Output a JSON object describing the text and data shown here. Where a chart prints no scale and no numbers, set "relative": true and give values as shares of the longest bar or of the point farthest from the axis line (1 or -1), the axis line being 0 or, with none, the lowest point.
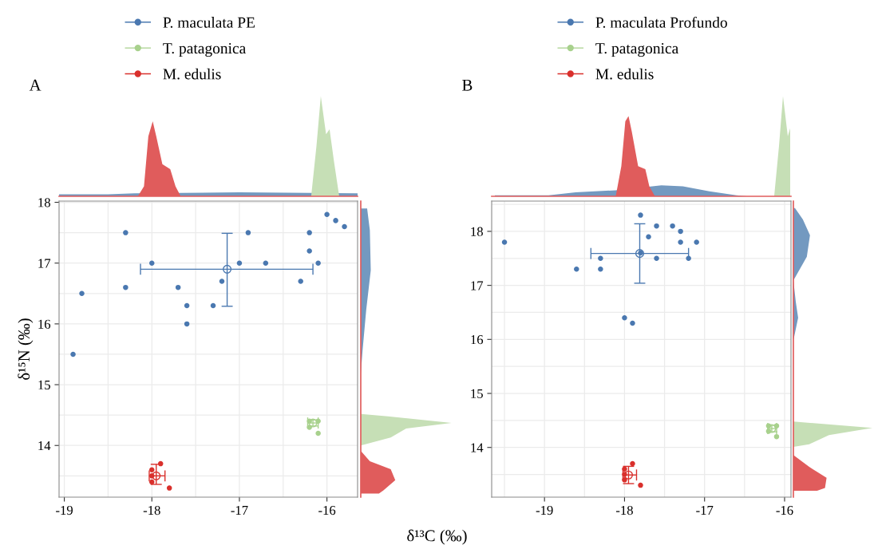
{
  "chart_data": [
    {
      "type": "scatter",
      "xlabel": "δ¹³C (‰)",
      "ylabel": "δ¹⁵N (‰)",
      "xlim": [
        -19.06,
        -15.65
      ],
      "ylim": [
        13.15,
        18.02
      ],
      "xticks": [
        -19,
        -18,
        -17,
        -16
      ],
      "yticks": [
        14,
        15,
        16,
        17,
        18
      ],
      "grid": true,
      "legend": "top left",
      "marker": "circle",
      "series": [
        {
          "name": "P. maculata PE",
          "color": "#4a78b0",
          "x": [
            -18.9,
            -18.8,
            -18.3,
            -18.3,
            -18.0,
            -17.7,
            -17.6,
            -17.6,
            -17.3,
            -17.2,
            -17.0,
            -16.9,
            -16.7,
            -16.3,
            -16.2,
            -16.2,
            -16.1,
            -16.0,
            -15.9,
            -15.8
          ],
          "values": [
            15.5,
            16.5,
            17.5,
            16.6,
            17.0,
            16.6,
            16.3,
            16.0,
            16.3,
            16.7,
            17.0,
            17.5,
            17.0,
            16.7,
            17.5,
            17.2,
            17.0,
            17.8,
            17.7,
            17.6
          ]
        },
        {
          "name": "T. patagonica",
          "color": "#a8d18d",
          "x": [
            -16.2,
            -16.2,
            -16.1,
            -16.1
          ],
          "values": [
            14.4,
            14.3,
            14.4,
            14.2
          ]
        },
        {
          "name": "M. edulis",
          "color": "#d9302c",
          "x": [
            -17.9,
            -18.0,
            -18.0,
            -18.0,
            -17.8
          ],
          "values": [
            13.7,
            13.6,
            13.5,
            13.4,
            13.3
          ]
        },
        {
          "color": "#4a78b0",
          "x": [
            -17.14
          ],
          "values": [
            16.9
          ],
          "errors": [
            [
              16.29,
              17.49
            ]
          ],
          "xerrors": [
            [
              -18.13,
              -16.16
            ]
          ]
        },
        {
          "color": "#a8d18d",
          "x": [
            -16.16
          ],
          "values": [
            14.37
          ],
          "errors": [
            [
              14.32,
              14.42
            ]
          ],
          "xerrors": [
            [
              -16.22,
              -16.1
            ]
          ]
        },
        {
          "color": "#d9302c",
          "x": [
            -17.95
          ],
          "values": [
            13.5
          ],
          "errors": [
            [
              13.36,
              13.69
            ]
          ],
          "xerrors": [
            [
              -18.03,
              -17.85
            ]
          ]
        }
      ]
    },
    {
      "type": "area",
      "title": "A",
      "relative": true,
      "xlim": [
        -19.06,
        -15.65
      ],
      "series": [
        {
          "color": "#7399c0",
          "x": [
            -19.06,
            -18.5,
            -18.2,
            -17.0,
            -15.65
          ],
          "values": [
            0.02,
            0.02,
            0.03,
            0.04,
            0.03
          ]
        },
        {
          "color": "#e05c5c",
          "x": [
            -18.16,
            -18.09,
            -18.04,
            -17.99,
            -17.95,
            -17.88,
            -17.79,
            -17.73,
            -17.67
          ],
          "values": [
            0,
            0.1,
            0.6,
            0.75,
            0.6,
            0.32,
            0.27,
            0.1,
            0
          ]
        },
        {
          "color": "#c6dfb6",
          "x": [
            -16.18,
            -16.12,
            -16.07,
            -16.01,
            -15.97,
            -15.92,
            -15.86
          ],
          "values": [
            0,
            0.5,
            1.0,
            0.62,
            0.67,
            0.35,
            0
          ]
        }
      ]
    },
    {
      "type": "area",
      "relative": true,
      "orientation": "horizontal",
      "ylim": [
        13.15,
        18.02
      ],
      "series": [
        {
          "color": "#7399c0",
          "x": [
            17.9,
            17.54,
            16.88,
            16.23,
            15.57,
            15.18
          ],
          "values": [
            0.07,
            0.1,
            0.11,
            0.06,
            0.02,
            0
          ]
        },
        {
          "color": "#c6dfb6",
          "x": [
            14.52,
            14.48,
            14.37,
            14.28,
            14.13,
            14.0
          ],
          "values": [
            0,
            0.3,
            1.0,
            0.5,
            0.33,
            0
          ]
        },
        {
          "color": "#e05c5c",
          "x": [
            13.91,
            13.74,
            13.61,
            13.43,
            13.26,
            13.21
          ],
          "values": [
            0,
            0.1,
            0.33,
            0.38,
            0.25,
            0.2
          ]
        }
      ]
    },
    {
      "type": "scatter",
      "xlim": [
        -19.66,
        -15.92
      ],
      "ylim": [
        13.08,
        18.56
      ],
      "xticks": [
        -19,
        -18,
        -17,
        -16
      ],
      "yticks": [
        14,
        15,
        16,
        17,
        18
      ],
      "grid": true,
      "legend": "top left",
      "marker": "circle",
      "series": [
        {
          "name": "P. maculata Profundo",
          "color": "#4a78b0",
          "x": [
            -19.5,
            -18.6,
            -18.3,
            -18.3,
            -18.0,
            -17.9,
            -17.8,
            -17.8,
            -17.7,
            -17.6,
            -17.6,
            -17.4,
            -17.3,
            -17.3,
            -17.2,
            -17.1
          ],
          "values": [
            17.8,
            17.3,
            17.5,
            17.3,
            16.4,
            16.3,
            18.3,
            17.6,
            17.9,
            18.1,
            17.5,
            18.1,
            18.0,
            17.8,
            17.5,
            17.8
          ]
        },
        {
          "name": "T. patagonica",
          "color": "#a8d18d",
          "x": [
            -16.2,
            -16.1,
            -16.2,
            -16.1
          ],
          "values": [
            14.4,
            14.4,
            14.3,
            14.2
          ]
        },
        {
          "name": "M. edulis",
          "color": "#d9302c",
          "x": [
            -17.9,
            -18.0,
            -18.0,
            -18.0,
            -17.8
          ],
          "values": [
            13.7,
            13.6,
            13.5,
            13.4,
            13.3
          ]
        },
        {
          "color": "#4a78b0",
          "x": [
            -17.81
          ],
          "values": [
            17.59
          ],
          "errors": [
            [
              17.04,
              18.14
            ]
          ],
          "xerrors": [
            [
              -18.42,
              -17.2
            ]
          ]
        },
        {
          "color": "#a8d18d",
          "x": [
            -16.16
          ],
          "values": [
            14.35
          ],
          "errors": [
            [
              14.29,
              14.41
            ]
          ],
          "xerrors": [
            [
              -16.21,
              -16.1
            ]
          ]
        },
        {
          "color": "#d9302c",
          "x": [
            -17.95
          ],
          "values": [
            13.49
          ],
          "errors": [
            [
              13.33,
              13.65
            ]
          ],
          "xerrors": [
            [
              -18.02,
              -17.85
            ]
          ]
        }
      ]
    },
    {
      "type": "area",
      "title": "B",
      "relative": true,
      "xlim": [
        -19.66,
        -15.92
      ],
      "series": [
        {
          "color": "#7399c0",
          "x": [
            -19.62,
            -18.95,
            -18.61,
            -18.11,
            -17.54,
            -17.27,
            -16.94,
            -16.6,
            -16.47
          ],
          "values": [
            0.01,
            0.01,
            0.04,
            0.06,
            0.11,
            0.1,
            0.05,
            0.01,
            0
          ]
        },
        {
          "color": "#e05c5c",
          "x": [
            -18.11,
            -18.04,
            -17.99,
            -17.95,
            -17.91,
            -17.83,
            -17.74,
            -17.69,
            -17.62
          ],
          "values": [
            0,
            0.3,
            0.75,
            0.8,
            0.65,
            0.3,
            0.27,
            0.1,
            0
          ]
        },
        {
          "color": "#c6dfb6",
          "x": [
            -16.13,
            -16.07,
            -16.02,
            -15.96,
            -15.93
          ],
          "values": [
            0,
            0.5,
            1.0,
            0.6,
            0.68
          ]
        }
      ]
    },
    {
      "type": "area",
      "relative": true,
      "orientation": "horizontal",
      "ylim": [
        13.08,
        18.56
      ],
      "series": [
        {
          "color": "#7399c0",
          "x": [
            18.43,
            18.22,
            17.93,
            17.53,
            17.09,
            16.7,
            16.4,
            16.05,
            16.0
          ],
          "values": [
            0.02,
            0.12,
            0.21,
            0.17,
            0,
            0.03,
            0.06,
            0.01,
            0
          ]
        },
        {
          "color": "#c6dfb6",
          "x": [
            14.48,
            14.36,
            14.23,
            14.06,
            14.01
          ],
          "values": [
            0,
            1.0,
            0.45,
            0.2,
            0
          ]
        },
        {
          "color": "#e05c5c",
          "x": [
            13.86,
            13.64,
            13.44,
            13.25,
            13.2
          ],
          "values": [
            0,
            0.2,
            0.42,
            0.4,
            0.3
          ]
        }
      ]
    }
  ]
}
